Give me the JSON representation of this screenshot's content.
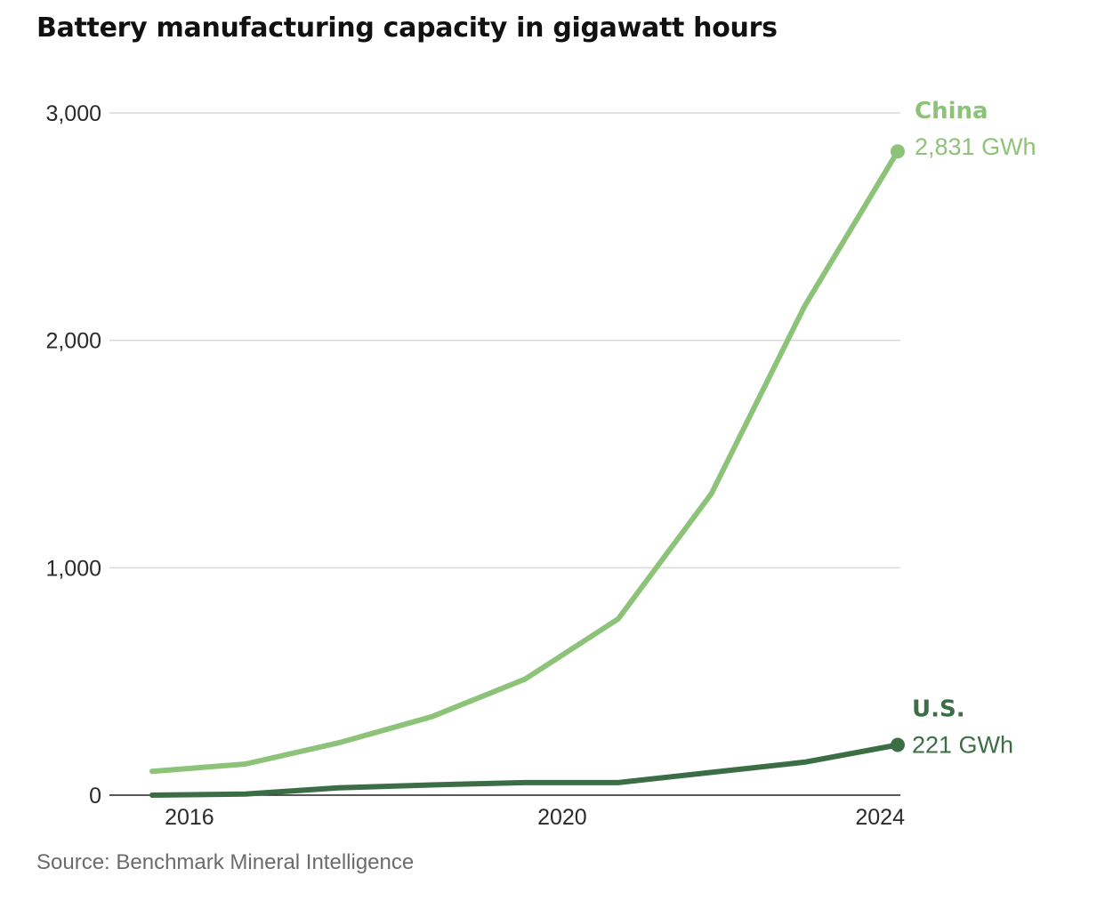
{
  "title": "Battery manufacturing capacity in gigawatt hours",
  "source": "Source: Benchmark Mineral Intelligence",
  "colors": {
    "china": "#8dc378",
    "us": "#3b6e45",
    "grid": "#d9d9d9",
    "axis": "#222222"
  },
  "chart_data": {
    "type": "line",
    "title": "Battery manufacturing capacity in gigawatt hours",
    "xlabel": "",
    "ylabel": "",
    "x": [
      2015.6,
      2016.6,
      2017.6,
      2018.6,
      2019.6,
      2020.6,
      2021.6,
      2022.6,
      2023.6
    ],
    "xlim": [
      2015.06,
      2023.73
    ],
    "ylim": [
      0,
      3000
    ],
    "x_ticks": [
      {
        "value": 2016,
        "label": "2016"
      },
      {
        "value": 2020,
        "label": "2020"
      },
      {
        "value": 2024,
        "label": "2024"
      }
    ],
    "y_ticks": [
      {
        "value": 0,
        "label": "0"
      },
      {
        "value": 1000,
        "label": "1,000"
      },
      {
        "value": 2000,
        "label": "2,000"
      },
      {
        "value": 3000,
        "label": "3,000"
      }
    ],
    "grid": true,
    "series": [
      {
        "name": "China",
        "end_label": "2,831 GWh",
        "values": [
          105,
          137,
          230,
          345,
          510,
          775,
          1325,
          2150,
          2831
        ]
      },
      {
        "name": "U.S.",
        "end_label": "221 GWh",
        "values": [
          0,
          5,
          32,
          45,
          55,
          55,
          100,
          145,
          221
        ]
      }
    ]
  }
}
